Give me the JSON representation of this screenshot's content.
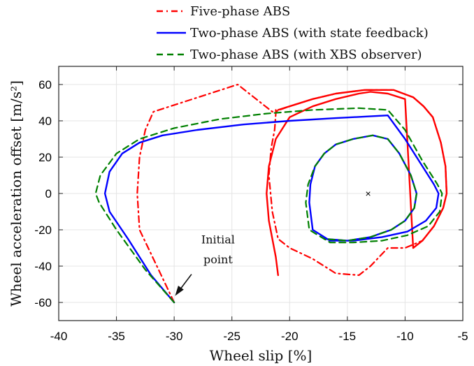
{
  "chart_data": {
    "type": "line",
    "xlabel": "Wheel slip [%]",
    "ylabel": "Wheel acceleration offset [m/s²]",
    "xlim": [
      -40,
      -5
    ],
    "ylim": [
      -70,
      70
    ],
    "xticks": [
      -40,
      -35,
      -30,
      -25,
      -20,
      -15,
      -10,
      -5
    ],
    "yticks": [
      -60,
      -40,
      -20,
      0,
      20,
      40,
      60
    ],
    "grid": true,
    "legend_position": "top-right outside",
    "colors": {
      "five_phase": "#ff0000",
      "state_feedback": "#0000ff",
      "xbs_observer": "#008000"
    },
    "series": [
      {
        "name": "Five-phase ABS",
        "style": "dash-dot",
        "color": "#ff0000",
        "x": [
          -30,
          -31.5,
          -33,
          -33.2,
          -33,
          -32.5,
          -31.8,
          -24.5,
          -21.5,
          -21.2,
          -21.2,
          -21.3,
          -21.6,
          -21.8,
          -21.5,
          -21,
          -20,
          -18,
          -16,
          -14,
          -13,
          -11.5,
          -10,
          -8.5,
          -7.5,
          -6.7,
          -6.4,
          -6.5,
          -6.9,
          -7.6,
          -8.4,
          -9.3,
          -11,
          -13.5,
          -16,
          -18,
          -20,
          -20.9,
          -21.2,
          -21.3
        ],
        "y": [
          -60,
          -40,
          -20,
          0,
          20,
          35,
          45,
          60,
          45,
          46,
          44,
          35,
          25,
          10,
          -10,
          -25,
          -30,
          -36,
          -44,
          -45,
          -40,
          -30,
          -30,
          -26,
          -18,
          -8,
          0,
          15,
          28,
          42,
          48,
          53,
          57,
          57,
          55,
          52,
          48,
          46,
          45,
          46
        ]
      },
      {
        "name": "",
        "style": "solid",
        "color": "#ff0000",
        "x": [
          -21,
          -21.2,
          -21.8,
          -22,
          -21.8,
          -21.2,
          -20,
          -18,
          -16,
          -14,
          -13,
          -11.5,
          -10,
          -9.3,
          -8.5,
          -7.5,
          -6.7,
          -6.4,
          -6.5,
          -6.9,
          -7.6,
          -8.4,
          -9.3,
          -11,
          -13.5,
          -16,
          -18,
          -20,
          -21
        ],
        "y": [
          -45,
          -35,
          -15,
          0,
          15,
          30,
          42,
          48,
          52,
          55,
          56,
          55,
          52,
          -30,
          -26,
          -18,
          -8,
          0,
          15,
          28,
          42,
          48,
          53,
          57,
          57,
          55,
          52,
          48,
          46
        ]
      },
      {
        "name": "Two-phase ABS (with state feedback)",
        "style": "solid",
        "color": "#0000ff",
        "x": [
          -30,
          -32,
          -34,
          -35.6,
          -36,
          -35.6,
          -34.5,
          -33,
          -31,
          -28,
          -24,
          -20,
          -16,
          -11.5,
          -10,
          -8.5,
          -7.5,
          -7.1,
          -7.3,
          -8.2,
          -9.8,
          -12,
          -14.5,
          -16.5,
          -18,
          -18.3,
          -18.2,
          -17.8,
          -17,
          -16,
          -14.5,
          -12.8,
          -11.5,
          -10.5,
          -9.5,
          -9.0,
          -9.2,
          -10,
          -11.2,
          -13,
          -15,
          -17
        ],
        "y": [
          -60,
          -45,
          -25,
          -10,
          0,
          12,
          22,
          28,
          32,
          35,
          38,
          40,
          41.5,
          43,
          30,
          15,
          5,
          0,
          -8,
          -15,
          -21,
          -24,
          -26,
          -26,
          -20,
          -5,
          5,
          15,
          22,
          27,
          30,
          32,
          30,
          22,
          10,
          0,
          -8,
          -15,
          -20,
          -24,
          -26,
          -25
        ]
      },
      {
        "name": "Two-phase ABS (with XBS observer)",
        "style": "dashed",
        "color": "#008000",
        "x": [
          -30,
          -32.5,
          -35,
          -36.5,
          -36.8,
          -36.4,
          -35,
          -33,
          -30,
          -26,
          -22,
          -18,
          -14,
          -11.5,
          -10,
          -8.5,
          -7.2,
          -6.8,
          -7,
          -8,
          -9.8,
          -12,
          -14.5,
          -16.5,
          -18.3,
          -18.6,
          -18.4,
          -17.8,
          -17,
          -16,
          -14.5,
          -12.8,
          -11.5,
          -10.5,
          -9.5,
          -9.0,
          -9.2,
          -10,
          -11.2,
          -13,
          -15,
          -17
        ],
        "y": [
          -60,
          -42,
          -20,
          -5,
          0,
          10,
          22,
          30,
          36,
          41,
          44,
          46,
          47,
          46,
          35,
          18,
          5,
          0,
          -10,
          -18,
          -23,
          -26,
          -27,
          -27,
          -20,
          -5,
          5,
          15,
          22,
          27,
          30,
          32,
          30,
          22,
          10,
          0,
          -8,
          -15,
          -20,
          -24,
          -26,
          -25
        ]
      }
    ],
    "marker": {
      "x": -13.2,
      "y": 0,
      "symbol": "×"
    },
    "annotation": {
      "lines": [
        "Initial",
        "point"
      ],
      "x": -30,
      "y": -60
    }
  },
  "legend": [
    {
      "label": "Five-phase ABS",
      "style": "dash-dot",
      "color": "#ff0000"
    },
    {
      "label": "Two-phase ABS (with state feedback)",
      "style": "solid",
      "color": "#0000ff"
    },
    {
      "label": "Two-phase ABS (with XBS observer)",
      "style": "dashed",
      "color": "#008000"
    }
  ]
}
